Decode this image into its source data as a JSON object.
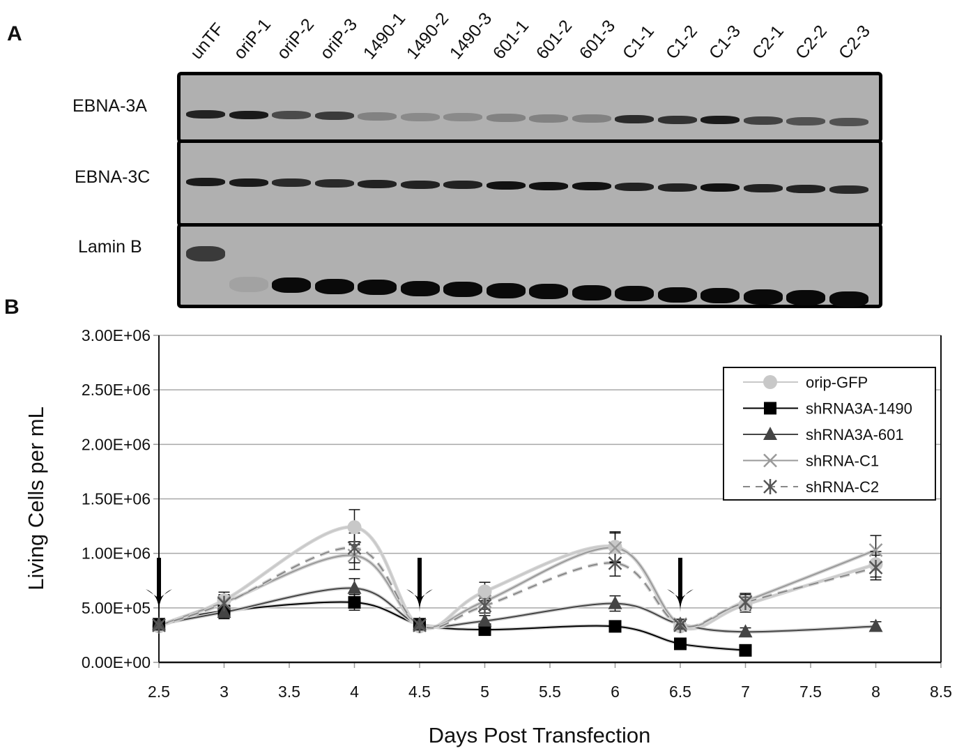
{
  "panel_a": {
    "letter": "A",
    "lanes": [
      "unTF",
      "oriP-1",
      "oriP-2",
      "oriP-3",
      "1490-1",
      "1490-2",
      "1490-3",
      "601-1",
      "601-2",
      "601-3",
      "C1-1",
      "C1-2",
      "C1-3",
      "C2-1",
      "C2-2",
      "C2-3"
    ],
    "blots": [
      {
        "label": "EBNA-3A",
        "intensity": [
          0.85,
          0.9,
          0.6,
          0.7,
          0.25,
          0.2,
          0.2,
          0.25,
          0.25,
          0.25,
          0.8,
          0.75,
          0.9,
          0.65,
          0.55,
          0.55
        ]
      },
      {
        "label": "EBNA-3C",
        "intensity": [
          0.9,
          0.9,
          0.8,
          0.8,
          0.85,
          0.85,
          0.85,
          0.95,
          0.95,
          0.95,
          0.85,
          0.85,
          0.95,
          0.85,
          0.85,
          0.8
        ]
      },
      {
        "label": "Lamin B",
        "intensity": [
          0.7,
          0.05,
          1,
          1,
          1,
          1,
          1,
          1,
          1,
          1,
          1,
          1,
          1,
          1,
          1,
          1
        ]
      }
    ]
  },
  "chart_data": {
    "panel_letter": "B",
    "type": "line",
    "title": "",
    "xlabel": "Days Post Transfection",
    "ylabel": "Living Cells per mL",
    "xlim": [
      2.5,
      8.5
    ],
    "ylim": [
      0,
      3000000
    ],
    "xticks": [
      "2.5",
      "3",
      "3.5",
      "4",
      "4.5",
      "5",
      "5.5",
      "6",
      "6.5",
      "7",
      "7.5",
      "8",
      "8.5"
    ],
    "yticks": [
      "0.00E+00",
      "5.00E+05",
      "1.00E+06",
      "1.50E+06",
      "2.00E+06",
      "2.50E+06",
      "3.00E+06"
    ],
    "grid": "horizontal",
    "legend_position": "top-right",
    "arrows_at_x": [
      2.5,
      4.5,
      6.5
    ],
    "x": [
      2.5,
      3,
      4,
      4.5,
      5,
      6,
      6.5,
      7,
      8
    ],
    "series": [
      {
        "name": "orip-GFP",
        "marker": "circle",
        "color": "#c8c8c8",
        "dash": false,
        "values": [
          330000,
          570000,
          1240000,
          330000,
          650000,
          1060000,
          330000,
          530000,
          900000
        ]
      },
      {
        "name": "shRNA3A-1490",
        "marker": "square",
        "color": "#000000",
        "dash": false,
        "values": [
          350000,
          470000,
          550000,
          350000,
          300000,
          330000,
          170000,
          110000,
          null
        ]
      },
      {
        "name": "shRNA3A-601",
        "marker": "triangle",
        "color": "#444444",
        "dash": false,
        "values": [
          350000,
          460000,
          680000,
          350000,
          380000,
          540000,
          350000,
          280000,
          330000
        ]
      },
      {
        "name": "shRNA-C1",
        "marker": "x",
        "color": "#999999",
        "dash": false,
        "values": [
          340000,
          550000,
          980000,
          340000,
          560000,
          1050000,
          350000,
          560000,
          1030000
        ]
      },
      {
        "name": "shRNA-C2",
        "marker": "asterisk",
        "color": "#888888",
        "dash": true,
        "values": [
          340000,
          540000,
          1050000,
          340000,
          520000,
          910000,
          340000,
          550000,
          870000
        ]
      }
    ]
  }
}
